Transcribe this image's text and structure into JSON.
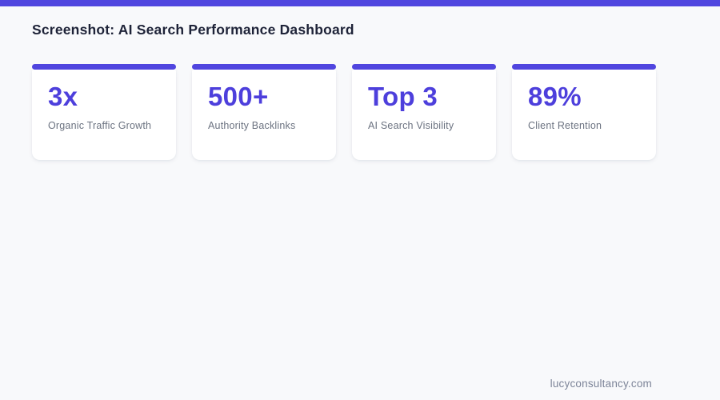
{
  "page": {
    "title": "Screenshot: AI Search Performance Dashboard",
    "footer_domain": "lucyconsultancy.com"
  },
  "colors": {
    "accent": "#5046df",
    "stat_number": "#4d3fdc",
    "background": "#f8f9fb",
    "title_text": "#1e2338",
    "label_text": "#6b7280",
    "footer_text": "#7c8498",
    "card_background": "#ffffff"
  },
  "stats": [
    {
      "value": "3x",
      "label": "Organic Traffic Growth"
    },
    {
      "value": "500+",
      "label": "Authority Backlinks"
    },
    {
      "value": "Top 3",
      "label": "AI Search Visibility"
    },
    {
      "value": "89%",
      "label": "Client Retention"
    }
  ]
}
